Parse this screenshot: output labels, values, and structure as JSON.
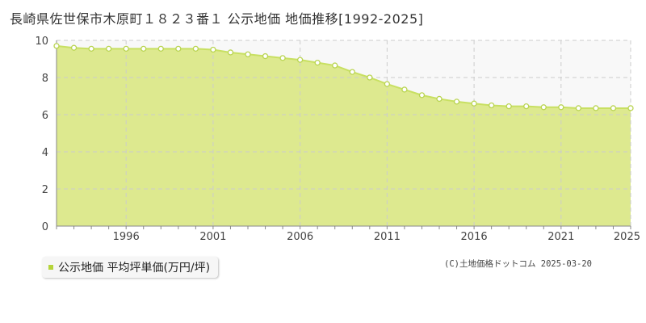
{
  "header": {
    "title": "長崎県佐世保市木原町１８２３番１ 公示地価 地価推移[1992-2025]"
  },
  "colors": {
    "area_fill": "#dde98f",
    "line": "#c8e062",
    "point_fill": "#ffffff",
    "point_stroke": "#b9d451",
    "grid": "#cccccc",
    "axis": "#888888",
    "legend_swatch": "#b5d43a",
    "plot_bg": "#f8f8f8"
  },
  "legend": {
    "label": "公示地価 平均坪単価(万円/坪)"
  },
  "footer": {
    "copyright": "(C)土地価格ドットコム 2025-03-20"
  },
  "chart_data": {
    "type": "area",
    "x": [
      1992,
      1993,
      1994,
      1995,
      1996,
      1997,
      1998,
      1999,
      2000,
      2001,
      2002,
      2003,
      2004,
      2005,
      2006,
      2007,
      2008,
      2009,
      2010,
      2011,
      2012,
      2013,
      2014,
      2015,
      2016,
      2017,
      2018,
      2019,
      2020,
      2021,
      2022,
      2023,
      2024,
      2025
    ],
    "series": [
      {
        "name": "公示地価 平均坪単価(万円/坪)",
        "values": [
          9.7,
          9.6,
          9.55,
          9.55,
          9.55,
          9.55,
          9.55,
          9.55,
          9.55,
          9.5,
          9.35,
          9.25,
          9.15,
          9.05,
          8.95,
          8.8,
          8.65,
          8.3,
          8.0,
          7.65,
          7.35,
          7.05,
          6.85,
          6.7,
          6.6,
          6.5,
          6.45,
          6.45,
          6.4,
          6.4,
          6.35,
          6.35,
          6.35,
          6.35
        ]
      }
    ],
    "xtick_labels": [
      "1996",
      "2001",
      "2006",
      "2011",
      "2016",
      "2021",
      "2025"
    ],
    "xtick_values": [
      1996,
      2001,
      2006,
      2011,
      2016,
      2021,
      2025
    ],
    "ytick_labels": [
      "0",
      "2",
      "4",
      "6",
      "8",
      "10"
    ],
    "ytick_values": [
      0,
      2,
      4,
      6,
      8,
      10
    ],
    "xlim": [
      1992,
      2025
    ],
    "ylim": [
      0,
      10
    ],
    "grid": true,
    "legend_position": "bottom-left"
  }
}
